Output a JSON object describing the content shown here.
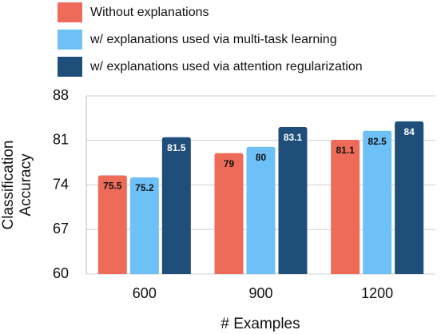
{
  "chart_data": {
    "type": "bar",
    "categories": [
      "600",
      "900",
      "1200"
    ],
    "series": [
      {
        "name": "Without explanations",
        "color": "#ee6b5a",
        "values": [
          75.5,
          79,
          81.1
        ]
      },
      {
        "name": "w/ explanations used via multi-task learning",
        "color": "#6ec1f7",
        "values": [
          75.2,
          80,
          82.5
        ]
      },
      {
        "name": "w/ explanations used via attention regularization",
        "color": "#1f4e7a",
        "values": [
          81.5,
          83.1,
          84
        ]
      }
    ],
    "ylim": [
      60,
      88
    ],
    "yticks": [
      60,
      67,
      74,
      81,
      88
    ],
    "grid": true,
    "xlabel": "# Examples",
    "ylabel": "Classification Accuracy",
    "legend": "top-left"
  }
}
